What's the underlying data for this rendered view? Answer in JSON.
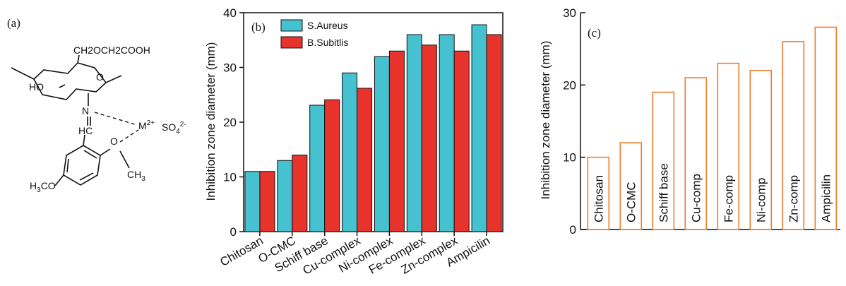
{
  "panel_a": {
    "label": "(a)",
    "chain_substituent": "CH2OCH2COOH",
    "hydroxyl": "HO",
    "imine_n": "N",
    "imine_ch": "HC",
    "metal": "M",
    "metal_charge": "2+",
    "counter_ion": "SO",
    "counter_ion_sub": "4",
    "counter_ion_charge": "2-",
    "ring_o": "O",
    "ether_o": "O",
    "methyl": "CH",
    "methyl_sub": "3",
    "methoxy": "H",
    "methoxy_sub": "3",
    "methoxy_tail": "CO"
  },
  "chart_data": [
    {
      "type": "bar",
      "panel_label": "(b)",
      "categories": [
        "Chitosan",
        "O-CMC",
        "Schiff base",
        "Cu-complex",
        "Ni-complex",
        "Fe-complex",
        "Zn-complex",
        "Ampicilin"
      ],
      "series": [
        {
          "name": "S.Aureus",
          "values": [
            11,
            13,
            23.1,
            29,
            32,
            36,
            36,
            37.8
          ]
        },
        {
          "name": "B.Subitlis",
          "values": [
            11,
            14,
            24.1,
            26.2,
            33,
            34.1,
            33,
            36
          ]
        }
      ],
      "series_colors": [
        "#45c1cf",
        "#e8332c"
      ],
      "xlabel": "",
      "ylabel": "Inhibition zone diameter (mm)",
      "ylim": [
        0,
        40
      ],
      "yticks": [
        0,
        10,
        20,
        30,
        40
      ],
      "legend_position": "top-left",
      "grid": false
    },
    {
      "type": "bar",
      "panel_label": "(c)",
      "categories": [
        "Chitosan",
        "O-CMC",
        "Schiff base",
        "Cu-comp",
        "Fe-comp",
        "Ni-comp",
        "Zn-comp",
        "Ampicilin"
      ],
      "values": [
        10,
        12,
        19,
        21,
        23,
        22,
        26,
        28
      ],
      "bar_color": "#ef7b2a",
      "xlabel": "",
      "ylabel": "Inhibition zone diameter (mm)",
      "ylim": [
        0,
        30
      ],
      "yticks": [
        0,
        10,
        20,
        30
      ],
      "grid": false
    }
  ]
}
